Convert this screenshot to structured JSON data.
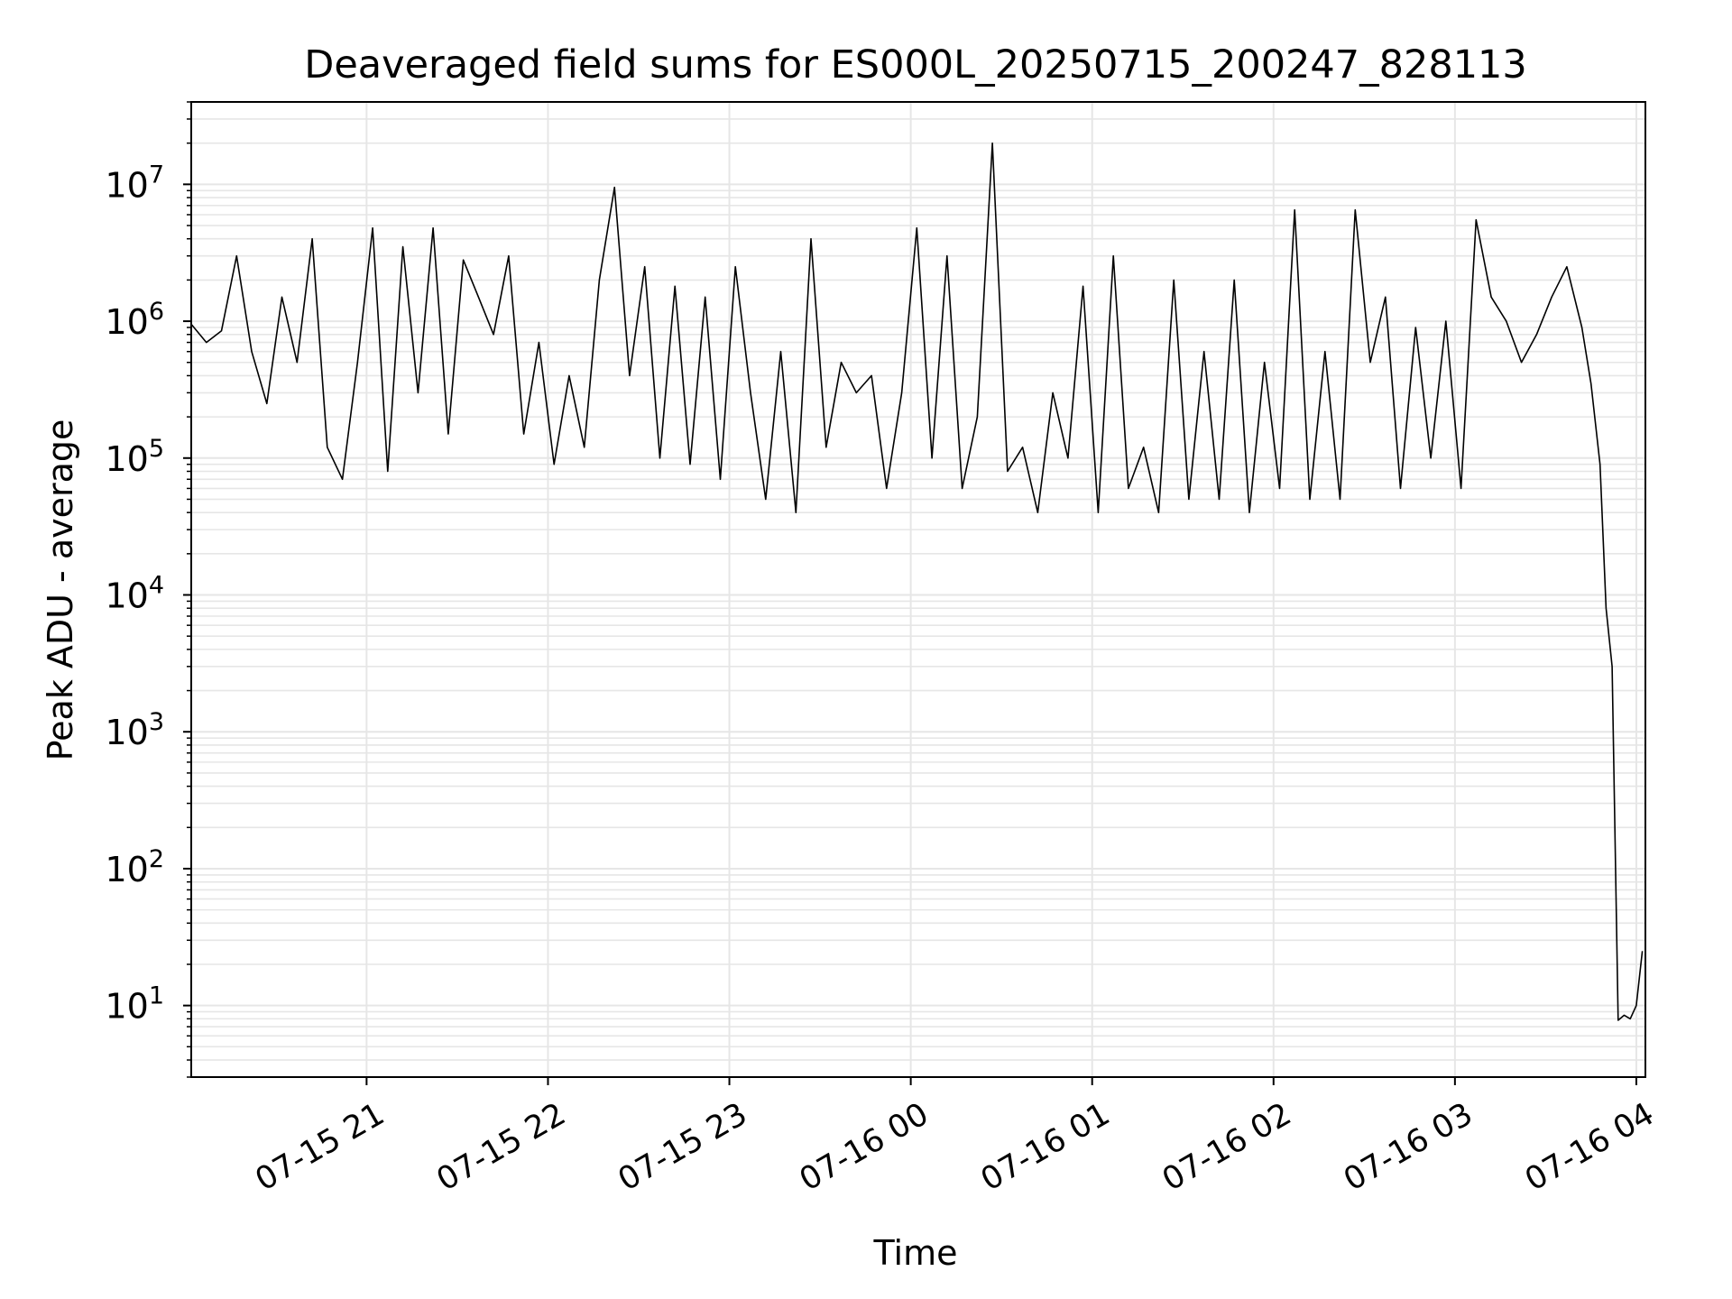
{
  "chart_data": {
    "type": "line",
    "title": "Deaveraged field sums for ES000L_20250715_200247_828113",
    "xlabel": "Time",
    "ylabel": "Peak ADU - average",
    "yscale": "log",
    "ylim": [
      3,
      40000000
    ],
    "xlim": [
      "2025-07-15 20:02",
      "2025-07-16 04:03"
    ],
    "grid": true,
    "line_color": "#000000",
    "grid_color": "#e6e6e6",
    "x_ticks": [
      {
        "label": "07-15 21",
        "value": "2025-07-15 21:00"
      },
      {
        "label": "07-15 22",
        "value": "2025-07-15 22:00"
      },
      {
        "label": "07-15 23",
        "value": "2025-07-15 23:00"
      },
      {
        "label": "07-16 00",
        "value": "2025-07-16 00:00"
      },
      {
        "label": "07-16 01",
        "value": "2025-07-16 01:00"
      },
      {
        "label": "07-16 02",
        "value": "2025-07-16 02:00"
      },
      {
        "label": "07-16 03",
        "value": "2025-07-16 03:00"
      },
      {
        "label": "07-16 04",
        "value": "2025-07-16 04:00"
      }
    ],
    "y_ticks": [
      {
        "base": "10",
        "exp": "1",
        "value": 10
      },
      {
        "base": "10",
        "exp": "2",
        "value": 100
      },
      {
        "base": "10",
        "exp": "3",
        "value": 1000
      },
      {
        "base": "10",
        "exp": "4",
        "value": 10000
      },
      {
        "base": "10",
        "exp": "5",
        "value": 100000
      },
      {
        "base": "10",
        "exp": "6",
        "value": 1000000
      },
      {
        "base": "10",
        "exp": "7",
        "value": 10000000
      }
    ],
    "series": [
      {
        "x": [
          "2025-07-15 20:02",
          "2025-07-15 20:07",
          "2025-07-15 20:12",
          "2025-07-15 20:17",
          "2025-07-15 20:22",
          "2025-07-15 20:27",
          "2025-07-15 20:32",
          "2025-07-15 20:37",
          "2025-07-15 20:42",
          "2025-07-15 20:47",
          "2025-07-15 20:52",
          "2025-07-15 20:57",
          "2025-07-15 21:02",
          "2025-07-15 21:07",
          "2025-07-15 21:12",
          "2025-07-15 21:17",
          "2025-07-15 21:22",
          "2025-07-15 21:27",
          "2025-07-15 21:32",
          "2025-07-15 21:37",
          "2025-07-15 21:42",
          "2025-07-15 21:47",
          "2025-07-15 21:52",
          "2025-07-15 21:57",
          "2025-07-15 22:02",
          "2025-07-15 22:07",
          "2025-07-15 22:12",
          "2025-07-15 22:17",
          "2025-07-15 22:22",
          "2025-07-15 22:27",
          "2025-07-15 22:32",
          "2025-07-15 22:37",
          "2025-07-15 22:42",
          "2025-07-15 22:47",
          "2025-07-15 22:52",
          "2025-07-15 22:57",
          "2025-07-15 23:02",
          "2025-07-15 23:07",
          "2025-07-15 23:12",
          "2025-07-15 23:17",
          "2025-07-15 23:22",
          "2025-07-15 23:27",
          "2025-07-15 23:32",
          "2025-07-15 23:37",
          "2025-07-15 23:42",
          "2025-07-15 23:47",
          "2025-07-15 23:52",
          "2025-07-15 23:57",
          "2025-07-16 00:02",
          "2025-07-16 00:07",
          "2025-07-16 00:12",
          "2025-07-16 00:17",
          "2025-07-16 00:22",
          "2025-07-16 00:27",
          "2025-07-16 00:32",
          "2025-07-16 00:37",
          "2025-07-16 00:42",
          "2025-07-16 00:47",
          "2025-07-16 00:52",
          "2025-07-16 00:57",
          "2025-07-16 01:02",
          "2025-07-16 01:07",
          "2025-07-16 01:12",
          "2025-07-16 01:17",
          "2025-07-16 01:22",
          "2025-07-16 01:27",
          "2025-07-16 01:32",
          "2025-07-16 01:37",
          "2025-07-16 01:42",
          "2025-07-16 01:47",
          "2025-07-16 01:52",
          "2025-07-16 01:57",
          "2025-07-16 02:02",
          "2025-07-16 02:07",
          "2025-07-16 02:12",
          "2025-07-16 02:17",
          "2025-07-16 02:22",
          "2025-07-16 02:27",
          "2025-07-16 02:32",
          "2025-07-16 02:37",
          "2025-07-16 02:42",
          "2025-07-16 02:47",
          "2025-07-16 02:52",
          "2025-07-16 02:57",
          "2025-07-16 03:02",
          "2025-07-16 03:07",
          "2025-07-16 03:12",
          "2025-07-16 03:17",
          "2025-07-16 03:22",
          "2025-07-16 03:27",
          "2025-07-16 03:32",
          "2025-07-16 03:37",
          "2025-07-16 03:42",
          "2025-07-16 03:45",
          "2025-07-16 03:48",
          "2025-07-16 03:50",
          "2025-07-16 03:52",
          "2025-07-16 03:54",
          "2025-07-16 03:56",
          "2025-07-16 03:58",
          "2025-07-16 04:00",
          "2025-07-16 04:02"
        ],
        "y": [
          950000,
          700000,
          850000,
          3000000,
          600000,
          250000,
          1500000,
          500000,
          4000000,
          120000,
          70000,
          500000,
          4800000,
          80000,
          3500000,
          300000,
          4800000,
          150000,
          2800000,
          1500000,
          800000,
          3000000,
          150000,
          700000,
          90000,
          400000,
          120000,
          2000000,
          9500000,
          400000,
          2500000,
          100000,
          1800000,
          90000,
          1500000,
          70000,
          2500000,
          300000,
          50000,
          600000,
          40000,
          4000000,
          120000,
          500000,
          300000,
          400000,
          60000,
          300000,
          4800000,
          100000,
          3000000,
          60000,
          200000,
          20000000,
          80000,
          120000,
          40000,
          300000,
          100000,
          1800000,
          40000,
          3000000,
          60000,
          120000,
          40000,
          2000000,
          50000,
          600000,
          50000,
          2000000,
          40000,
          500000,
          60000,
          6500000,
          50000,
          600000,
          50000,
          6500000,
          500000,
          1500000,
          60000,
          900000,
          100000,
          1000000,
          60000,
          5500000,
          1500000,
          1000000,
          500000,
          800000,
          1500000,
          2500000,
          900000,
          350000,
          90000,
          8000,
          3000,
          7.8,
          8.5,
          8,
          10,
          25
        ]
      }
    ]
  }
}
